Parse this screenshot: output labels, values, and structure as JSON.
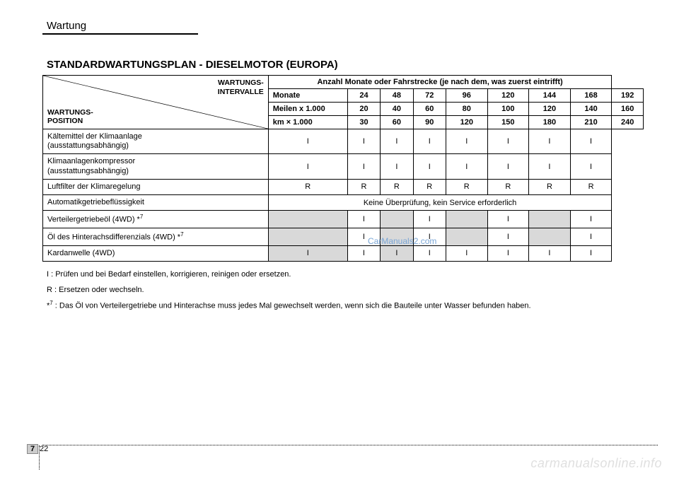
{
  "page_header": "Wartung",
  "section_title": "STANDARDWARTUNGSPLAN - DIESELMOTOR (EUROPA)",
  "corner": {
    "top1": "WARTUNGS-",
    "top2": "INTERVALLE",
    "bottom1": "WARTUNGS-",
    "bottom2": "POSITION"
  },
  "header_span": "Anzahl Monate oder Fahrstrecke (je nach dem, was zuerst eintrifft)",
  "header_rows": [
    {
      "label": "Monate",
      "vals": [
        "24",
        "48",
        "72",
        "96",
        "120",
        "144",
        "168",
        "192"
      ]
    },
    {
      "label": "Meilen x 1.000",
      "vals": [
        "20",
        "40",
        "60",
        "80",
        "100",
        "120",
        "140",
        "160"
      ]
    },
    {
      "label": "km × 1.000",
      "vals": [
        "30",
        "60",
        "90",
        "120",
        "150",
        "180",
        "210",
        "240"
      ]
    }
  ],
  "items": [
    {
      "name": "Kältemittel der Klimaanlage<br>(ausstattungsabhängig)",
      "cells": [
        "I",
        "I",
        "I",
        "I",
        "I",
        "I",
        "I",
        "I"
      ],
      "shade": []
    },
    {
      "name": "Klimaanlagenkompressor<br>(ausstattungsabhängig)",
      "cells": [
        "I",
        "I",
        "I",
        "I",
        "I",
        "I",
        "I",
        "I"
      ],
      "shade": []
    },
    {
      "name": "Luftfilter der Klimaregelung",
      "cells": [
        "R",
        "R",
        "R",
        "R",
        "R",
        "R",
        "R",
        "R"
      ],
      "shade": []
    },
    {
      "name": "Automatikgetriebeflüssigkeit",
      "span": "Keine Überprüfung, kein Service erforderlich"
    },
    {
      "name": "Verteilergetriebeöl (4WD) *<span class='sup'>7</span>",
      "cells": [
        "",
        "I",
        "",
        "I",
        "",
        "I",
        "",
        "I"
      ],
      "shade": [
        0,
        2,
        4,
        6
      ]
    },
    {
      "name": "Öl des Hinterachsdifferenzials (4WD) *<span class='sup'>7</span>",
      "cells": [
        "",
        "I",
        "",
        "I",
        "",
        "I",
        "",
        "I"
      ],
      "shade": [
        0,
        2,
        4,
        6
      ]
    },
    {
      "name": "Kardanwelle (4WD)",
      "cells": [
        "I",
        "I",
        "I",
        "I",
        "I",
        "I",
        "I",
        "I"
      ],
      "shade": [
        0,
        2
      ]
    }
  ],
  "notes": {
    "n1": "I : Prüfen und bei Bedarf einstellen, korrigieren, reinigen oder ersetzen.",
    "n2": "R : Ersetzen oder wechseln.",
    "n3": "*<span class='sup'>7</span> : Das Öl von Verteilergetriebe und Hinterachse muss jedes Mal gewechselt werden, wenn sich die Bauteile unter Wasser befunden haben."
  },
  "footer": {
    "section": "7",
    "page": "22"
  },
  "watermark": "carmanualsonline.info",
  "watermark2": "CarManuals2.com",
  "colors": {
    "shade": "#d9d9d9",
    "border": "#000000",
    "bg": "#ffffff"
  }
}
